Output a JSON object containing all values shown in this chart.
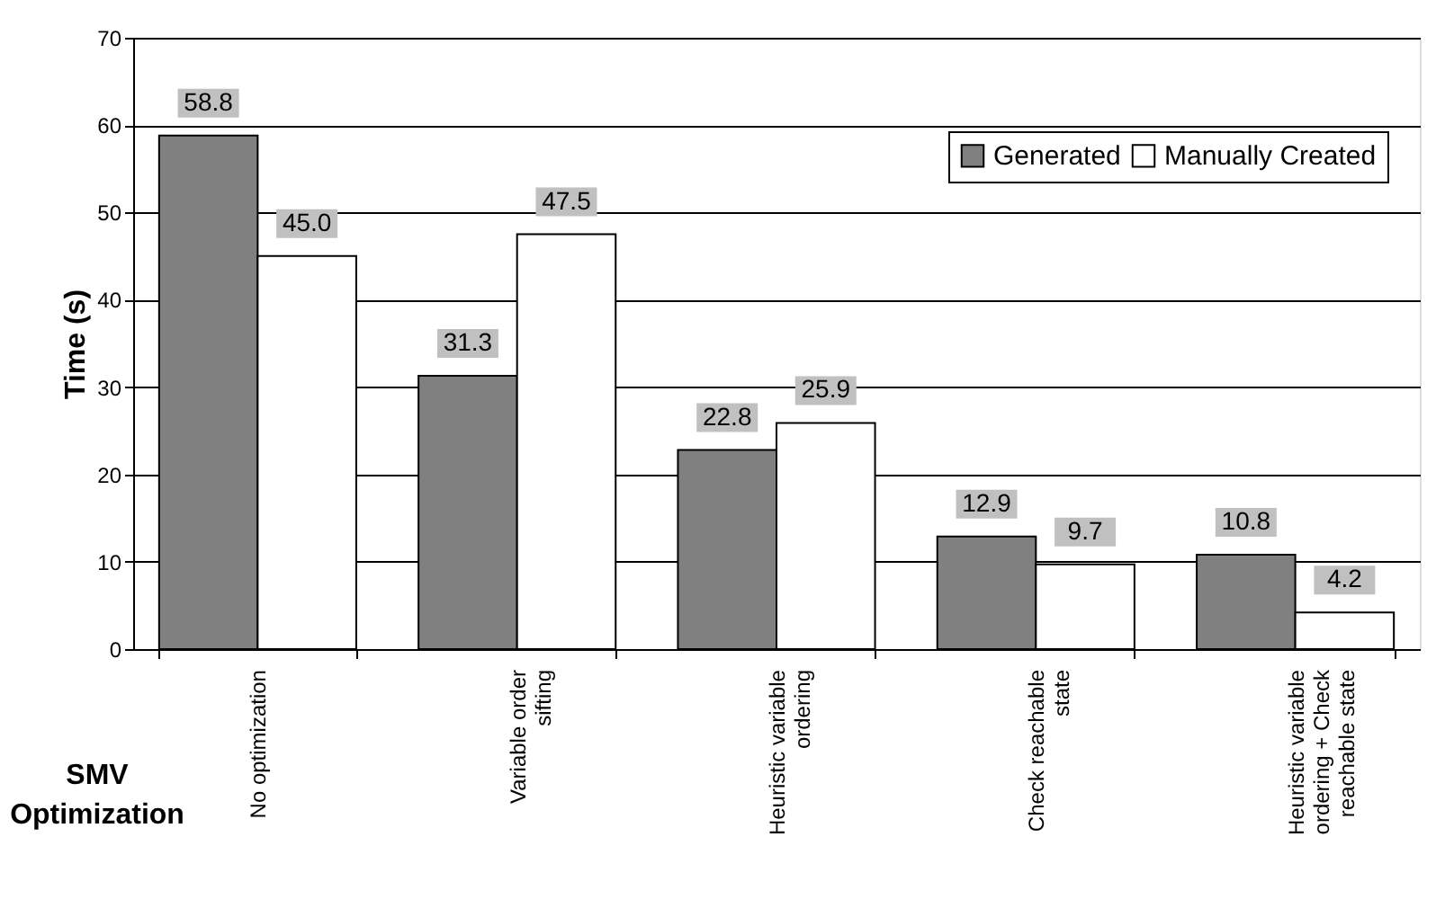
{
  "chart_data": {
    "type": "bar",
    "ylabel": "Time (s)",
    "xlabel": "SMV Optimization",
    "categories": [
      "No optimization",
      "Variable order sifting",
      "Heuristic variable ordering",
      "Check reachable state",
      "Heuristic variable ordering + Check reachable state"
    ],
    "series": [
      {
        "name": "Generated",
        "color": "#808080",
        "values": [
          58.8,
          31.3,
          22.8,
          12.9,
          10.8
        ]
      },
      {
        "name": "Manually Created",
        "color": "#ffffff",
        "values": [
          45.0,
          47.5,
          25.9,
          9.7,
          4.2
        ]
      }
    ],
    "value_labels": [
      [
        "58.8",
        "31.3",
        "22.8",
        "12.9",
        "10.8"
      ],
      [
        "45.0",
        "47.5",
        "25.9",
        "9.7",
        "4.2"
      ]
    ],
    "ylim": [
      0,
      70
    ],
    "yticks": [
      0,
      10,
      20,
      30,
      40,
      50,
      60,
      70
    ],
    "grid": "y",
    "legend": "top right"
  }
}
